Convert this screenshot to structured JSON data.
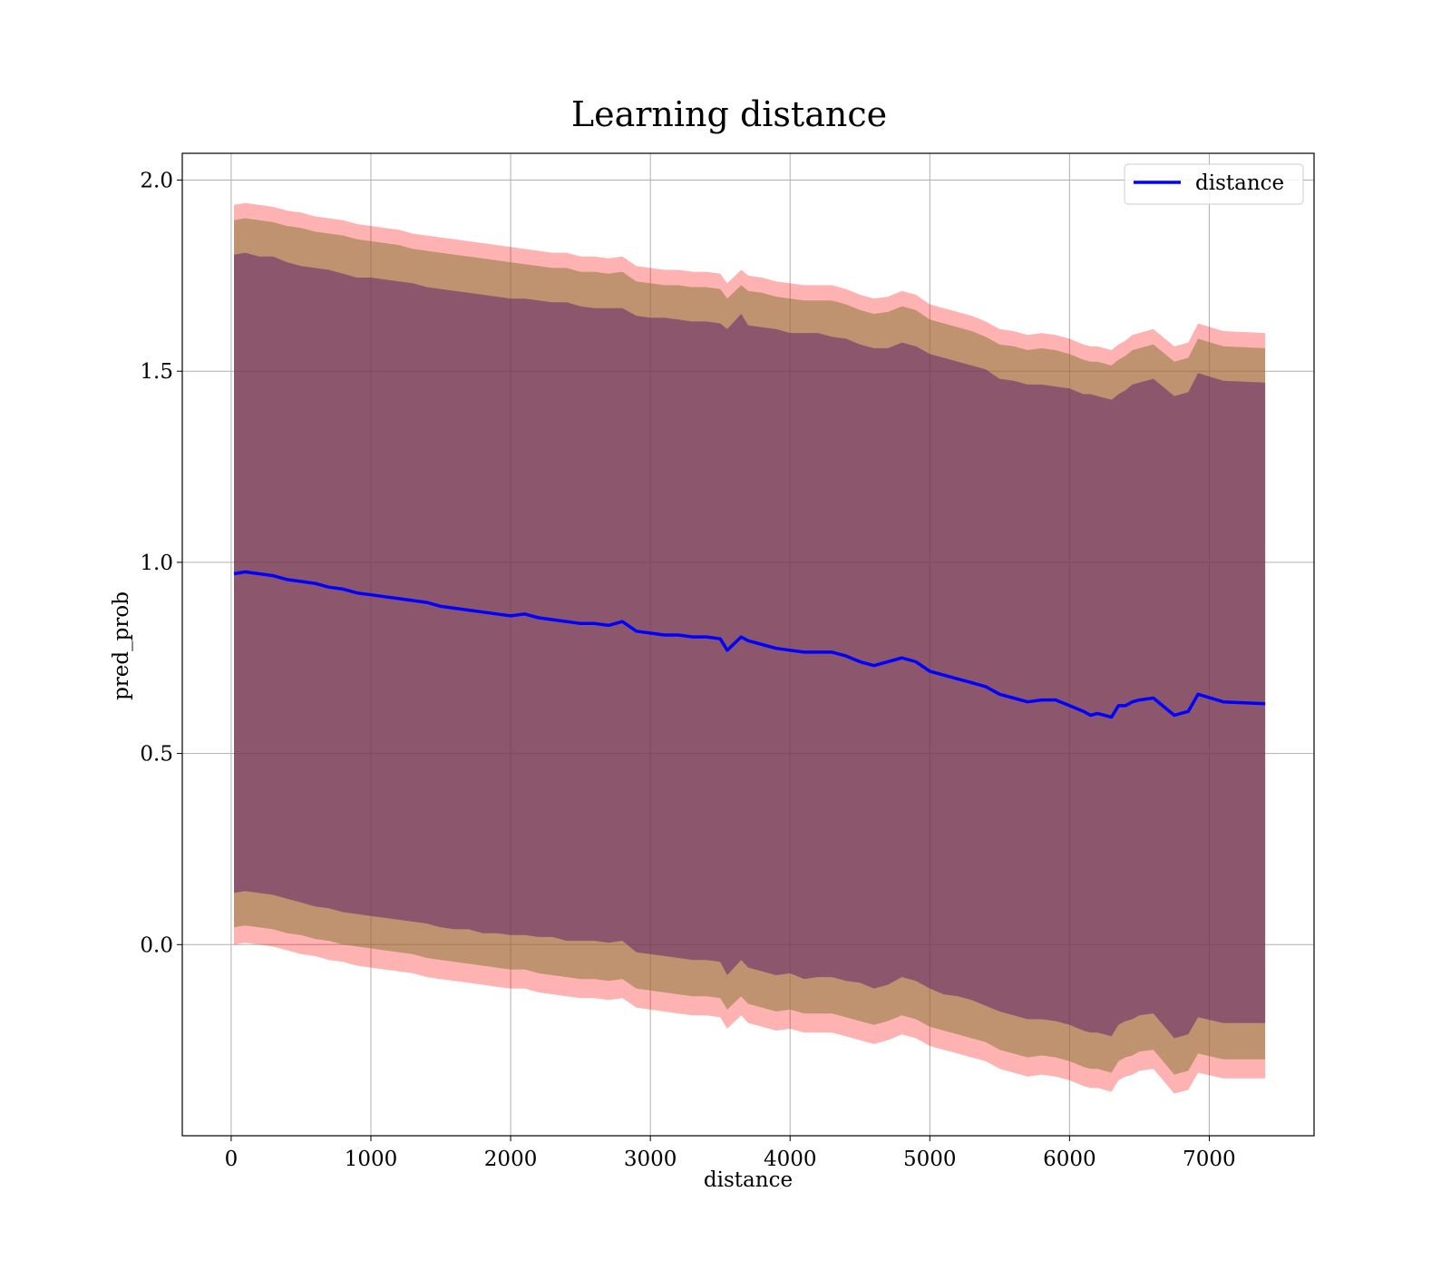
{
  "chart_data": {
    "type": "line",
    "title": "Learning distance",
    "xlabel": "distance",
    "ylabel": "pred_prob",
    "xlim": [
      -350,
      7750
    ],
    "ylim": [
      -0.5,
      2.07
    ],
    "x_ticks": [
      0,
      1000,
      2000,
      3000,
      4000,
      5000,
      6000,
      7000
    ],
    "y_ticks": [
      0.0,
      0.5,
      1.0,
      1.5,
      2.0
    ],
    "x_tick_labels": [
      "0",
      "1000",
      "2000",
      "3000",
      "4000",
      "5000",
      "6000",
      "7000"
    ],
    "y_tick_labels": [
      "0.0",
      "0.5",
      "1.0",
      "1.5",
      "2.0"
    ],
    "grid": true,
    "legend": {
      "placement": "upper-right",
      "entries": [
        "distance"
      ]
    },
    "colors": {
      "line": "#0000ff",
      "band_outer": "#ff0000",
      "band_middle": "#8b7a3a",
      "band_inner": "#5a1a6a"
    },
    "x": [
      20,
      100,
      200,
      300,
      400,
      500,
      600,
      700,
      800,
      900,
      1000,
      1100,
      1200,
      1300,
      1400,
      1500,
      1600,
      1700,
      1800,
      1900,
      2000,
      2100,
      2200,
      2300,
      2400,
      2500,
      2600,
      2700,
      2800,
      2900,
      3000,
      3100,
      3200,
      3300,
      3400,
      3500,
      3550,
      3650,
      3700,
      3800,
      3900,
      4000,
      4100,
      4200,
      4300,
      4400,
      4500,
      4600,
      4700,
      4800,
      4900,
      5000,
      5100,
      5200,
      5300,
      5400,
      5500,
      5600,
      5700,
      5800,
      5900,
      6000,
      6100,
      6150,
      6200,
      6300,
      6350,
      6400,
      6450,
      6500,
      6600,
      6750,
      6850,
      6920,
      7100,
      7400
    ],
    "series": [
      {
        "name": "distance",
        "values": [
          0.97,
          0.975,
          0.97,
          0.965,
          0.955,
          0.95,
          0.945,
          0.935,
          0.93,
          0.92,
          0.915,
          0.91,
          0.905,
          0.9,
          0.895,
          0.885,
          0.88,
          0.875,
          0.87,
          0.865,
          0.86,
          0.865,
          0.855,
          0.85,
          0.845,
          0.84,
          0.84,
          0.835,
          0.845,
          0.82,
          0.815,
          0.81,
          0.81,
          0.805,
          0.805,
          0.8,
          0.77,
          0.805,
          0.795,
          0.785,
          0.775,
          0.77,
          0.765,
          0.765,
          0.765,
          0.755,
          0.74,
          0.73,
          0.74,
          0.75,
          0.74,
          0.715,
          0.705,
          0.695,
          0.685,
          0.675,
          0.655,
          0.645,
          0.635,
          0.64,
          0.64,
          0.625,
          0.61,
          0.6,
          0.605,
          0.595,
          0.625,
          0.625,
          0.635,
          0.64,
          0.645,
          0.6,
          0.61,
          0.655,
          0.635,
          0.63
        ]
      }
    ],
    "bands": {
      "inner_upper": [
        1.805,
        1.81,
        1.8,
        1.8,
        1.785,
        1.775,
        1.77,
        1.765,
        1.755,
        1.745,
        1.745,
        1.74,
        1.735,
        1.73,
        1.72,
        1.715,
        1.71,
        1.705,
        1.7,
        1.695,
        1.69,
        1.69,
        1.685,
        1.68,
        1.68,
        1.67,
        1.665,
        1.665,
        1.665,
        1.645,
        1.64,
        1.64,
        1.635,
        1.63,
        1.63,
        1.625,
        1.61,
        1.65,
        1.62,
        1.615,
        1.61,
        1.6,
        1.6,
        1.6,
        1.59,
        1.585,
        1.57,
        1.56,
        1.56,
        1.575,
        1.565,
        1.545,
        1.535,
        1.525,
        1.515,
        1.505,
        1.48,
        1.475,
        1.465,
        1.465,
        1.46,
        1.455,
        1.44,
        1.44,
        1.435,
        1.425,
        1.44,
        1.45,
        1.465,
        1.47,
        1.48,
        1.435,
        1.445,
        1.495,
        1.475,
        1.47
      ],
      "inner_lower": [
        0.135,
        0.14,
        0.135,
        0.13,
        0.12,
        0.11,
        0.1,
        0.095,
        0.085,
        0.08,
        0.075,
        0.07,
        0.065,
        0.06,
        0.055,
        0.045,
        0.04,
        0.04,
        0.03,
        0.03,
        0.025,
        0.025,
        0.02,
        0.02,
        0.01,
        0.01,
        0.01,
        0.005,
        0.01,
        -0.02,
        -0.025,
        -0.03,
        -0.035,
        -0.04,
        -0.04,
        -0.045,
        -0.08,
        -0.04,
        -0.06,
        -0.07,
        -0.08,
        -0.075,
        -0.09,
        -0.085,
        -0.085,
        -0.095,
        -0.1,
        -0.115,
        -0.105,
        -0.085,
        -0.095,
        -0.115,
        -0.13,
        -0.135,
        -0.145,
        -0.16,
        -0.175,
        -0.185,
        -0.195,
        -0.195,
        -0.2,
        -0.21,
        -0.225,
        -0.23,
        -0.23,
        -0.24,
        -0.21,
        -0.2,
        -0.195,
        -0.185,
        -0.18,
        -0.245,
        -0.235,
        -0.19,
        -0.205,
        -0.205
      ],
      "middle_upper": [
        1.895,
        1.9,
        1.895,
        1.89,
        1.88,
        1.875,
        1.865,
        1.86,
        1.855,
        1.845,
        1.84,
        1.835,
        1.83,
        1.82,
        1.815,
        1.81,
        1.805,
        1.8,
        1.795,
        1.79,
        1.785,
        1.78,
        1.775,
        1.77,
        1.77,
        1.76,
        1.76,
        1.755,
        1.76,
        1.735,
        1.73,
        1.725,
        1.725,
        1.72,
        1.72,
        1.715,
        1.69,
        1.725,
        1.71,
        1.705,
        1.695,
        1.69,
        1.685,
        1.685,
        1.685,
        1.675,
        1.66,
        1.65,
        1.655,
        1.67,
        1.66,
        1.635,
        1.625,
        1.615,
        1.605,
        1.59,
        1.57,
        1.565,
        1.555,
        1.56,
        1.555,
        1.545,
        1.53,
        1.525,
        1.525,
        1.515,
        1.53,
        1.54,
        1.555,
        1.56,
        1.57,
        1.525,
        1.535,
        1.585,
        1.565,
        1.56
      ],
      "middle_lower": [
        0.045,
        0.05,
        0.045,
        0.04,
        0.03,
        0.025,
        0.015,
        0.01,
        0.0,
        -0.005,
        -0.01,
        -0.015,
        -0.02,
        -0.025,
        -0.035,
        -0.04,
        -0.045,
        -0.05,
        -0.055,
        -0.06,
        -0.065,
        -0.065,
        -0.075,
        -0.08,
        -0.085,
        -0.09,
        -0.09,
        -0.095,
        -0.09,
        -0.115,
        -0.12,
        -0.125,
        -0.13,
        -0.135,
        -0.135,
        -0.14,
        -0.17,
        -0.135,
        -0.155,
        -0.165,
        -0.175,
        -0.17,
        -0.18,
        -0.18,
        -0.18,
        -0.19,
        -0.2,
        -0.21,
        -0.2,
        -0.185,
        -0.195,
        -0.215,
        -0.225,
        -0.235,
        -0.245,
        -0.255,
        -0.275,
        -0.285,
        -0.295,
        -0.29,
        -0.295,
        -0.305,
        -0.32,
        -0.325,
        -0.325,
        -0.335,
        -0.305,
        -0.295,
        -0.29,
        -0.28,
        -0.275,
        -0.34,
        -0.33,
        -0.285,
        -0.3,
        -0.3
      ],
      "outer_upper": [
        1.935,
        1.94,
        1.935,
        1.93,
        1.92,
        1.915,
        1.905,
        1.9,
        1.895,
        1.885,
        1.88,
        1.875,
        1.87,
        1.86,
        1.855,
        1.85,
        1.845,
        1.84,
        1.835,
        1.83,
        1.825,
        1.82,
        1.815,
        1.81,
        1.81,
        1.8,
        1.8,
        1.795,
        1.8,
        1.775,
        1.77,
        1.765,
        1.765,
        1.76,
        1.76,
        1.755,
        1.73,
        1.765,
        1.75,
        1.745,
        1.735,
        1.73,
        1.725,
        1.725,
        1.725,
        1.715,
        1.7,
        1.69,
        1.695,
        1.71,
        1.7,
        1.675,
        1.665,
        1.655,
        1.645,
        1.63,
        1.61,
        1.605,
        1.595,
        1.6,
        1.595,
        1.585,
        1.57,
        1.565,
        1.565,
        1.555,
        1.57,
        1.58,
        1.595,
        1.6,
        1.61,
        1.565,
        1.575,
        1.625,
        1.605,
        1.6
      ],
      "outer_lower": [
        0.0,
        0.005,
        0.0,
        -0.005,
        -0.015,
        -0.025,
        -0.03,
        -0.04,
        -0.045,
        -0.055,
        -0.06,
        -0.065,
        -0.07,
        -0.075,
        -0.085,
        -0.09,
        -0.095,
        -0.1,
        -0.105,
        -0.11,
        -0.115,
        -0.115,
        -0.125,
        -0.13,
        -0.135,
        -0.14,
        -0.14,
        -0.145,
        -0.14,
        -0.165,
        -0.17,
        -0.175,
        -0.18,
        -0.185,
        -0.185,
        -0.19,
        -0.22,
        -0.185,
        -0.205,
        -0.215,
        -0.225,
        -0.22,
        -0.23,
        -0.23,
        -0.23,
        -0.24,
        -0.25,
        -0.26,
        -0.25,
        -0.235,
        -0.245,
        -0.265,
        -0.275,
        -0.285,
        -0.295,
        -0.305,
        -0.325,
        -0.335,
        -0.345,
        -0.34,
        -0.345,
        -0.355,
        -0.37,
        -0.375,
        -0.375,
        -0.385,
        -0.355,
        -0.345,
        -0.34,
        -0.33,
        -0.325,
        -0.39,
        -0.38,
        -0.335,
        -0.35,
        -0.35
      ]
    }
  }
}
